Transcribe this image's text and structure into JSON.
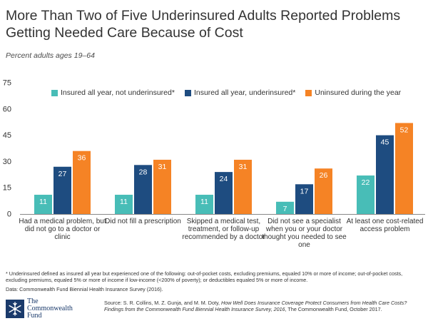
{
  "title": "More Than Two of Five Underinsured Adults Reported Problems Getting Needed Care Because of Cost",
  "subtitle": "Percent adults ages 19–64",
  "colors": {
    "teal": "#48bdb7",
    "navy": "#1e4c80",
    "orange": "#f58325",
    "text": "#333333"
  },
  "chart_data": {
    "type": "bar",
    "categories": [
      "Had a medical problem, but did not go to a doctor or clinic",
      "Did not fill a prescription",
      "Skipped a medical test, treatment, or follow-up recommended by a doctor",
      "Did not see a specialist when you or your doctor thought you needed to see one",
      "At least one cost-related access problem"
    ],
    "category_lines": [
      [
        "Had a medical problem, but",
        "did not go to a doctor or",
        "clinic"
      ],
      [
        "Did not fill a prescription"
      ],
      [
        "Skipped a medical test,",
        "treatment, or follow-up",
        "recommended by a doctor"
      ],
      [
        "Did not see a specialist",
        "when you or your doctor",
        "thought you needed to see",
        "one"
      ],
      [
        "At least one cost-related",
        "access problem"
      ]
    ],
    "series": [
      {
        "name": "Insured all year, not underinsured*",
        "color": "#48bdb7",
        "values": [
          11,
          11,
          11,
          7,
          22
        ]
      },
      {
        "name": "Insured all year, underinsured*",
        "color": "#1e4c80",
        "values": [
          27,
          28,
          24,
          17,
          45
        ]
      },
      {
        "name": "Uninsured during the year",
        "color": "#f58325",
        "values": [
          36,
          31,
          31,
          26,
          52
        ]
      }
    ],
    "yticks": [
      0,
      15,
      30,
      45,
      60,
      75
    ],
    "ylim": [
      0,
      75
    ],
    "grid": false,
    "legend_position": "top"
  },
  "footnote": "* Underinsured defined as insured all year but experienced one of the following: out-of-pocket costs, excluding premiums, equaled 10% or more of income; out-of-pocket costs, excluding premiums, equaled 5% or more of income if low-income (<200% of poverty); or deductibles equaled 5% or more of income.",
  "data_source": "Data: Commonwealth Fund Biennial Health Insurance Survey (2016).",
  "logo": {
    "line1": "The",
    "line2": "Commonwealth",
    "line3": "Fund",
    "icon": "snowflake-logo-icon"
  },
  "citation": {
    "prefix": "Source: S. R. Collins, M. Z. Gunja, and M. M. Doty, ",
    "italic": "How Well Does Insurance Coverage Protect Consumers from Health Care Costs? Findings from the Commonwealth Fund Biennial Health Insurance Survey, 2016",
    "suffix": ", The Commonwealth Fund, October 2017."
  }
}
